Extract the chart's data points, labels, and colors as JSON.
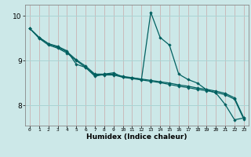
{
  "xlabel": "Humidex (Indice chaleur)",
  "bg_color": "#cce8e8",
  "line_color": "#006060",
  "hgrid_color": "#aad4d4",
  "vgrid_color": "#c8a8a8",
  "xlim": [
    -0.5,
    23.5
  ],
  "ylim": [
    7.55,
    10.25
  ],
  "yticks": [
    8,
    9,
    10
  ],
  "xticks": [
    0,
    1,
    2,
    3,
    4,
    5,
    6,
    7,
    8,
    9,
    10,
    11,
    12,
    13,
    14,
    15,
    16,
    17,
    18,
    19,
    20,
    21,
    22,
    23
  ],
  "series1": [
    9.72,
    9.52,
    9.38,
    9.32,
    9.22,
    8.92,
    8.85,
    8.65,
    8.7,
    8.73,
    8.63,
    8.62,
    8.58,
    10.08,
    9.52,
    9.35,
    8.7,
    8.58,
    8.5,
    8.35,
    8.28,
    8.02,
    7.68,
    7.72
  ],
  "series2": [
    9.72,
    9.52,
    9.38,
    9.3,
    9.2,
    9.02,
    8.88,
    8.7,
    8.7,
    8.7,
    8.65,
    8.62,
    8.59,
    8.56,
    8.53,
    8.5,
    8.46,
    8.43,
    8.39,
    8.36,
    8.32,
    8.27,
    8.17,
    7.72
  ],
  "series3": [
    9.72,
    9.5,
    9.35,
    9.28,
    9.17,
    9.0,
    8.85,
    8.68,
    8.68,
    8.68,
    8.63,
    8.6,
    8.57,
    8.54,
    8.51,
    8.47,
    8.43,
    8.4,
    8.36,
    8.33,
    8.29,
    8.24,
    8.14,
    7.69
  ]
}
